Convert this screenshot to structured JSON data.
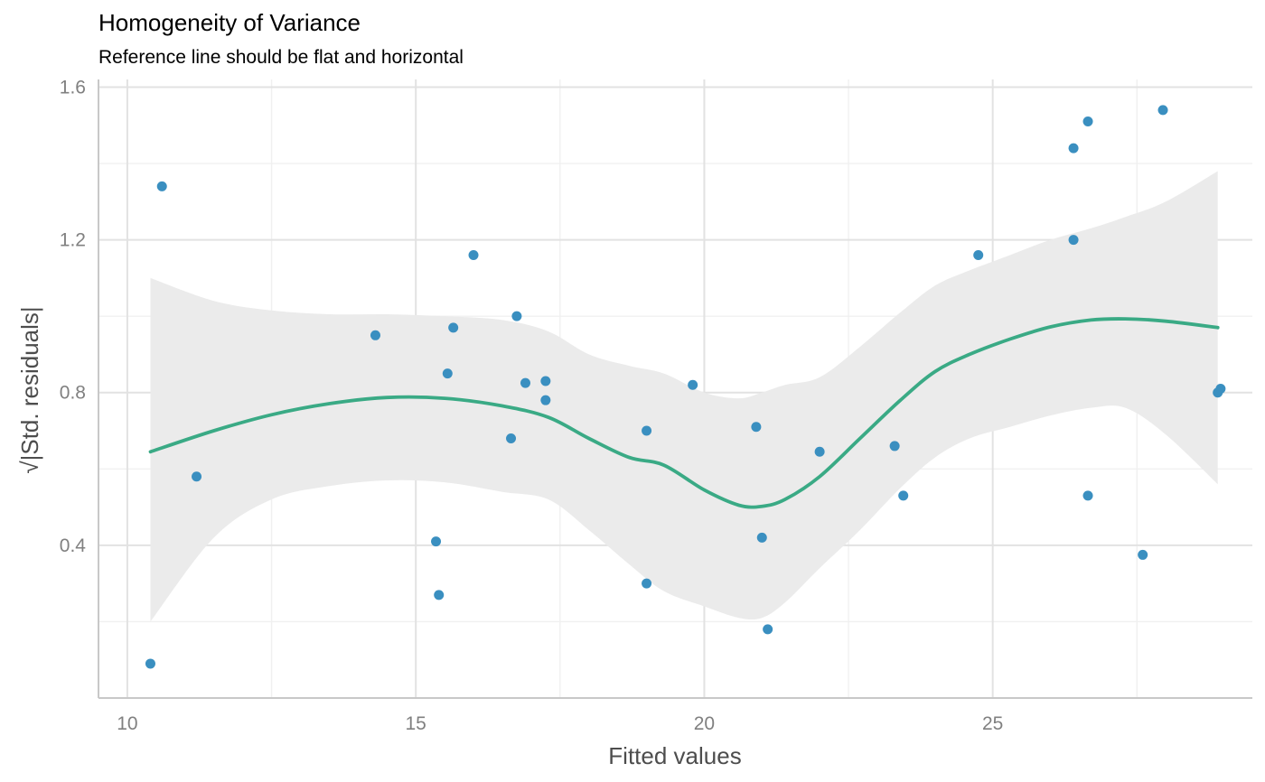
{
  "chart_data": {
    "type": "scatter",
    "title": "Homogeneity of Variance",
    "subtitle": "Reference line should be flat and horizontal",
    "xlabel": "Fitted values",
    "ylabel": "√|Std. residuals|",
    "xlim": [
      9.5,
      29.5
    ],
    "ylim": [
      0.0,
      1.62
    ],
    "x_ticks": [
      10,
      15,
      20,
      25
    ],
    "x_tick_labels": [
      "10",
      "15",
      "20",
      "25"
    ],
    "x_minor_ticks": [
      12.5,
      17.5,
      22.5,
      27.5
    ],
    "y_ticks": [
      0.4,
      0.8,
      1.2,
      1.6
    ],
    "y_tick_labels": [
      "0.4",
      "0.8",
      "1.2",
      "1.6"
    ],
    "y_minor_ticks": [
      0.2,
      0.6,
      1.0,
      1.4
    ],
    "grid": true,
    "colors": {
      "points": "#3a8fc0",
      "smooth_line": "#3aaa85",
      "ci_band": "#ebebeb",
      "grid_major": "#e2e2e2",
      "grid_minor": "#f0f0f0",
      "axis_line": "#c8c8c8"
    },
    "points": [
      {
        "x": 10.4,
        "y": 0.09
      },
      {
        "x": 10.6,
        "y": 1.34
      },
      {
        "x": 11.2,
        "y": 0.58
      },
      {
        "x": 14.3,
        "y": 0.95
      },
      {
        "x": 15.35,
        "y": 0.41
      },
      {
        "x": 15.4,
        "y": 0.27
      },
      {
        "x": 15.55,
        "y": 0.85
      },
      {
        "x": 15.65,
        "y": 0.97
      },
      {
        "x": 16.0,
        "y": 1.16
      },
      {
        "x": 16.65,
        "y": 0.68
      },
      {
        "x": 16.75,
        "y": 1.0
      },
      {
        "x": 16.9,
        "y": 0.825
      },
      {
        "x": 17.25,
        "y": 0.83
      },
      {
        "x": 17.25,
        "y": 0.78
      },
      {
        "x": 19.0,
        "y": 0.7
      },
      {
        "x": 19.0,
        "y": 0.3
      },
      {
        "x": 19.8,
        "y": 0.82
      },
      {
        "x": 20.9,
        "y": 0.71
      },
      {
        "x": 21.0,
        "y": 0.42
      },
      {
        "x": 21.1,
        "y": 0.18
      },
      {
        "x": 22.0,
        "y": 0.645
      },
      {
        "x": 23.3,
        "y": 0.66
      },
      {
        "x": 23.45,
        "y": 0.53
      },
      {
        "x": 24.75,
        "y": 1.16
      },
      {
        "x": 26.4,
        "y": 1.2
      },
      {
        "x": 26.4,
        "y": 1.44
      },
      {
        "x": 26.65,
        "y": 1.51
      },
      {
        "x": 26.65,
        "y": 0.53
      },
      {
        "x": 27.6,
        "y": 0.375
      },
      {
        "x": 27.95,
        "y": 1.54
      },
      {
        "x": 28.9,
        "y": 0.8
      },
      {
        "x": 28.95,
        "y": 0.81
      }
    ],
    "smooth": {
      "x": [
        10.4,
        11.5,
        12.5,
        13.5,
        14.5,
        15.5,
        16.5,
        17.3,
        18.0,
        18.7,
        19.3,
        20.0,
        20.6,
        21.0,
        21.4,
        22.0,
        22.7,
        23.4,
        24.0,
        24.6,
        25.3,
        26.0,
        26.7,
        27.3,
        28.0,
        28.9
      ],
      "y": [
        0.645,
        0.7,
        0.742,
        0.771,
        0.787,
        0.785,
        0.765,
        0.735,
        0.68,
        0.63,
        0.61,
        0.545,
        0.505,
        0.502,
        0.52,
        0.58,
        0.68,
        0.78,
        0.855,
        0.9,
        0.94,
        0.972,
        0.99,
        0.993,
        0.987,
        0.97
      ],
      "lower": [
        0.2,
        0.42,
        0.52,
        0.555,
        0.57,
        0.565,
        0.54,
        0.52,
        0.44,
        0.35,
        0.28,
        0.24,
        0.21,
        0.21,
        0.25,
        0.34,
        0.44,
        0.55,
        0.63,
        0.68,
        0.71,
        0.74,
        0.76,
        0.76,
        0.69,
        0.56
      ],
      "upper": [
        1.1,
        1.04,
        1.015,
        1.005,
        1.005,
        1.0,
        0.99,
        0.96,
        0.9,
        0.87,
        0.85,
        0.8,
        0.785,
        0.8,
        0.82,
        0.84,
        0.92,
        1.01,
        1.08,
        1.12,
        1.16,
        1.2,
        1.23,
        1.26,
        1.3,
        1.38
      ]
    }
  }
}
